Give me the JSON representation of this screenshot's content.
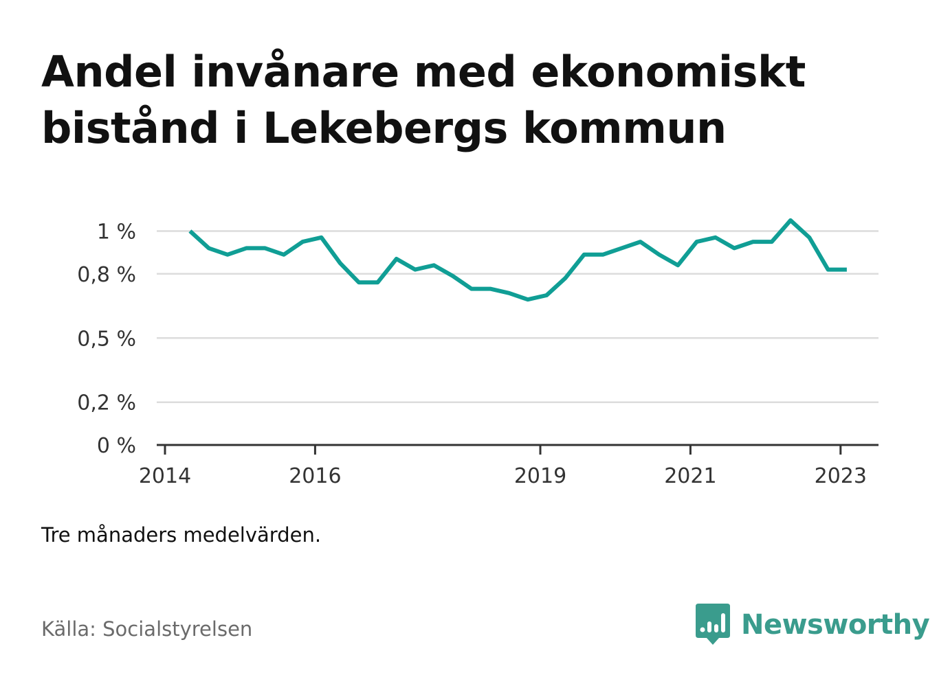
{
  "header": {
    "title_line1": "Andel invånare med ekonomiskt",
    "title_line2": "bistånd i Lekebergs kommun"
  },
  "chart_data": {
    "type": "line",
    "title": "Andel invånare med ekonomiskt bistånd i Lekebergs kommun",
    "xlabel": "",
    "ylabel": "",
    "x_start": "2014-05",
    "x_step_months": 3,
    "x_ticks": [
      "2014",
      "2016",
      "2019",
      "2021",
      "2023"
    ],
    "y_ticks": [
      "0 %",
      "0,2 %",
      "0,5 %",
      "0,8 %",
      "1 %"
    ],
    "y_tick_values": [
      0,
      0.2,
      0.5,
      0.8,
      1.0
    ],
    "ylim": [
      0,
      1.05
    ],
    "grid": true,
    "series": [
      {
        "color": "#109e95",
        "x": [
          "2014-05",
          "2014-08",
          "2014-11",
          "2015-02",
          "2015-05",
          "2015-08",
          "2015-11",
          "2016-02",
          "2016-05",
          "2016-08",
          "2016-11",
          "2017-02",
          "2017-05",
          "2017-08",
          "2017-11",
          "2018-02",
          "2018-05",
          "2018-08",
          "2018-11",
          "2019-02",
          "2019-05",
          "2019-08",
          "2019-11",
          "2020-02",
          "2020-05",
          "2020-08",
          "2020-11",
          "2021-02",
          "2021-05",
          "2021-08",
          "2021-11",
          "2022-02",
          "2022-05",
          "2022-08",
          "2022-11",
          "2023-02"
        ],
        "values": [
          1.0,
          0.92,
          0.89,
          0.92,
          0.92,
          0.89,
          0.95,
          0.97,
          0.85,
          0.76,
          0.76,
          0.87,
          0.82,
          0.84,
          0.79,
          0.73,
          0.73,
          0.71,
          0.68,
          0.7,
          0.78,
          0.89,
          0.89,
          0.92,
          0.95,
          0.89,
          0.84,
          0.95,
          0.97,
          0.92,
          0.95,
          0.95,
          1.05,
          0.97,
          0.82,
          0.82
        ]
      }
    ]
  },
  "notes": {
    "subtitle": "Tre månaders medelvärden.",
    "source": "Källa: Socialstyrelsen"
  },
  "brand": {
    "name": "Newsworthy",
    "color": "#3a9c8d",
    "logo_icon": "bar-chart-speech-bubble-icon"
  }
}
